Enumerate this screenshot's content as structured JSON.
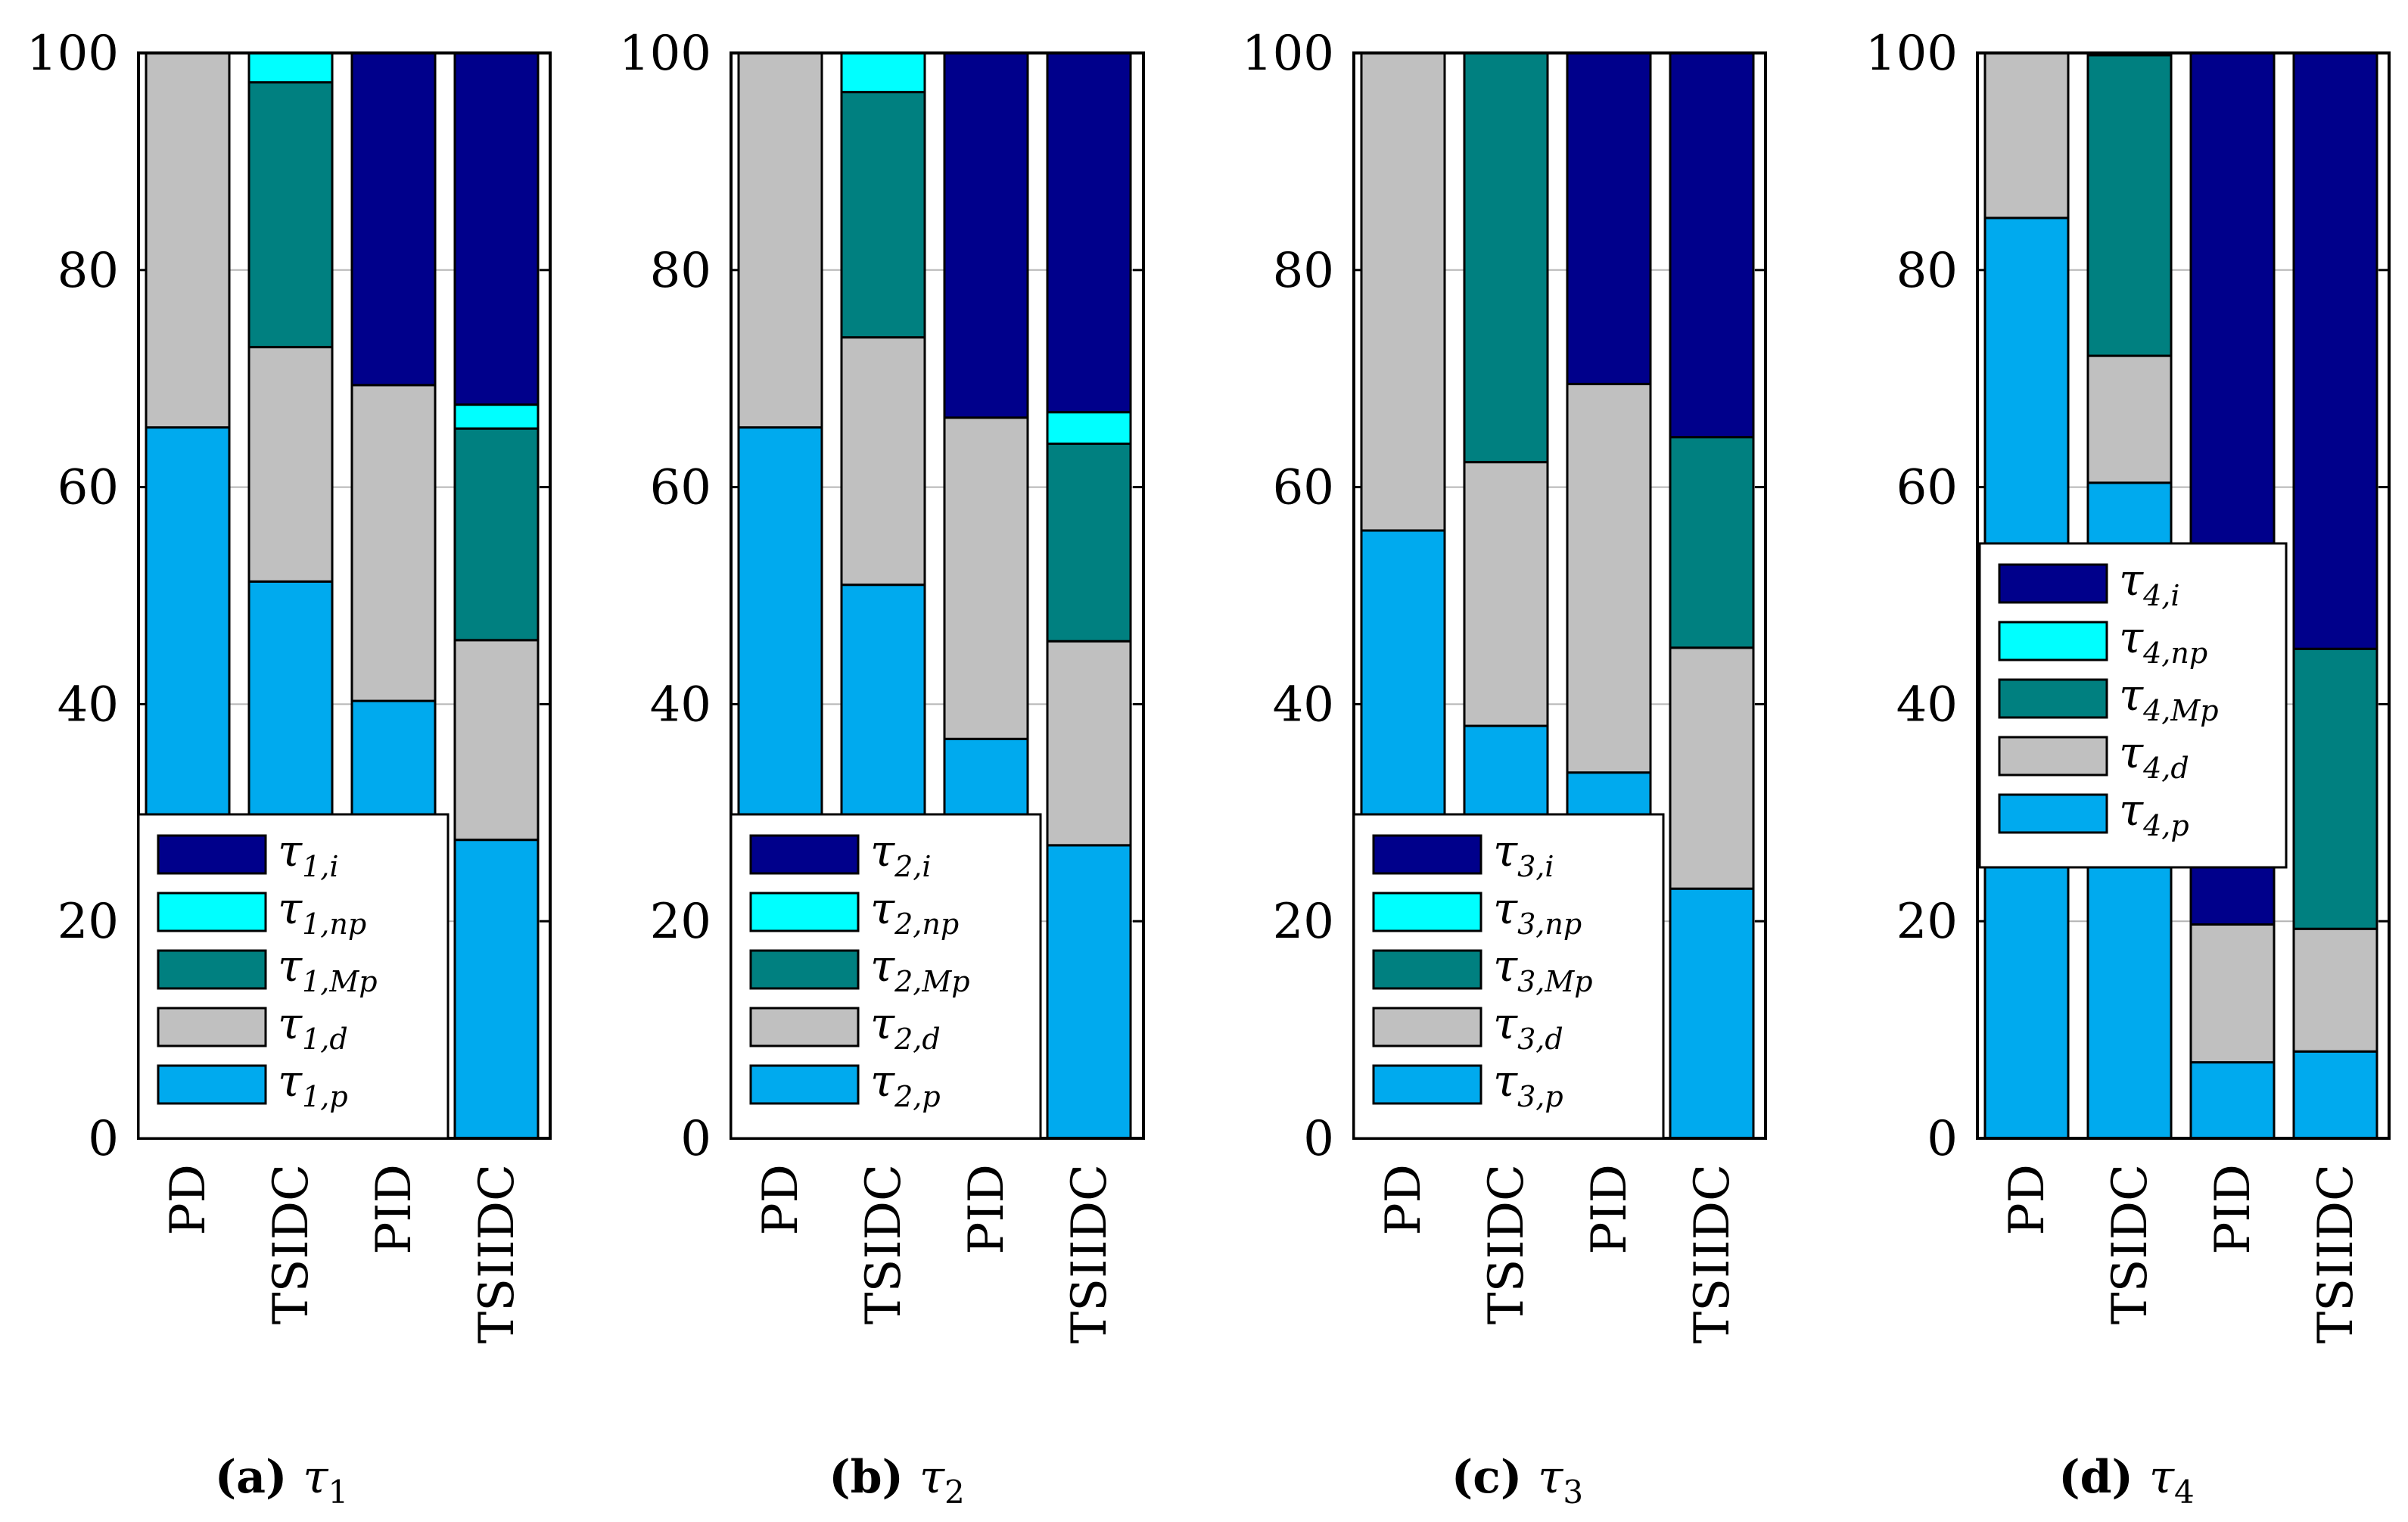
{
  "colors": {
    "p": "#00aaee",
    "d": "#c0c0c0",
    "Mp": "#008080",
    "np": "#00ffff",
    "i": "#00008b",
    "grid": "#b4b4b4",
    "frame": "#000000"
  },
  "chart_data": [
    {
      "type": "bar",
      "stacked": true,
      "caption": {
        "letter": "(a)",
        "symbol": "τ",
        "sub": "1"
      },
      "categories": [
        "PD",
        "TSIDC",
        "PID",
        "TSIIDC"
      ],
      "ylim": [
        0,
        100
      ],
      "yticks": [
        "0",
        "20",
        "40",
        "60",
        "80",
        "100"
      ],
      "grid": true,
      "legend_position": "bottom-left",
      "series": [
        {
          "key": "p",
          "label": "τ",
          "sub": "1,p",
          "values": [
            65.5,
            51.3,
            40.3,
            27.5
          ]
        },
        {
          "key": "d",
          "label": "τ",
          "sub": "1,d",
          "values": [
            34.5,
            21.6,
            29.1,
            18.4
          ]
        },
        {
          "key": "Mp",
          "label": "τ",
          "sub": "1,Mp",
          "values": [
            0,
            24.4,
            0,
            19.5
          ]
        },
        {
          "key": "np",
          "label": "τ",
          "sub": "1,np",
          "values": [
            0,
            2.7,
            0,
            2.2
          ]
        },
        {
          "key": "i",
          "label": "τ",
          "sub": "1,i",
          "values": [
            0,
            0,
            30.6,
            32.4
          ]
        }
      ]
    },
    {
      "type": "bar",
      "stacked": true,
      "caption": {
        "letter": "(b)",
        "symbol": "τ",
        "sub": "2"
      },
      "categories": [
        "PD",
        "TSIDC",
        "PID",
        "TSIIDC"
      ],
      "ylim": [
        0,
        100
      ],
      "yticks": [
        "0",
        "20",
        "40",
        "60",
        "80",
        "100"
      ],
      "grid": true,
      "legend_position": "bottom-left",
      "series": [
        {
          "key": "p",
          "label": "τ",
          "sub": "2,p",
          "values": [
            65.5,
            51.0,
            36.8,
            27.0
          ]
        },
        {
          "key": "d",
          "label": "τ",
          "sub": "2,d",
          "values": [
            34.5,
            22.8,
            29.6,
            18.8
          ]
        },
        {
          "key": "Mp",
          "label": "τ",
          "sub": "2,Mp",
          "values": [
            0,
            22.6,
            0,
            18.2
          ]
        },
        {
          "key": "np",
          "label": "τ",
          "sub": "2,np",
          "values": [
            0,
            3.6,
            0,
            2.9
          ]
        },
        {
          "key": "i",
          "label": "τ",
          "sub": "2,i",
          "values": [
            0,
            0,
            33.6,
            33.1
          ]
        }
      ]
    },
    {
      "type": "bar",
      "stacked": true,
      "caption": {
        "letter": "(c)",
        "symbol": "τ",
        "sub": "3"
      },
      "categories": [
        "PD",
        "TSIDC",
        "PID",
        "TSIIDC"
      ],
      "ylim": [
        0,
        100
      ],
      "yticks": [
        "0",
        "20",
        "40",
        "60",
        "80",
        "100"
      ],
      "grid": true,
      "legend_position": "bottom-left",
      "series": [
        {
          "key": "p",
          "label": "τ",
          "sub": "3,p",
          "values": [
            56.0,
            38.0,
            33.7,
            23.0
          ]
        },
        {
          "key": "d",
          "label": "τ",
          "sub": "3,d",
          "values": [
            44.0,
            24.3,
            35.8,
            22.2
          ]
        },
        {
          "key": "Mp",
          "label": "τ",
          "sub": "3,Mp",
          "values": [
            0,
            37.7,
            0,
            19.4
          ]
        },
        {
          "key": "np",
          "label": "τ",
          "sub": "3,np",
          "values": [
            0,
            0,
            0,
            0
          ]
        },
        {
          "key": "i",
          "label": "τ",
          "sub": "3,i",
          "values": [
            0,
            0,
            30.5,
            35.4
          ]
        }
      ]
    },
    {
      "type": "bar",
      "stacked": true,
      "caption": {
        "letter": "(d)",
        "symbol": "τ",
        "sub": "4"
      },
      "categories": [
        "PD",
        "TSIDC",
        "PID",
        "TSIIDC"
      ],
      "ylim": [
        0,
        100
      ],
      "yticks": [
        "0",
        "20",
        "40",
        "60",
        "80",
        "100"
      ],
      "grid": true,
      "legend_position": "center-left",
      "series": [
        {
          "key": "p",
          "label": "τ",
          "sub": "4,p",
          "values": [
            84.8,
            60.4,
            7.0,
            8.0
          ]
        },
        {
          "key": "d",
          "label": "τ",
          "sub": "4,d",
          "values": [
            15.2,
            11.7,
            12.7,
            11.3
          ]
        },
        {
          "key": "Mp",
          "label": "τ",
          "sub": "4,Mp",
          "values": [
            0,
            27.7,
            0,
            25.8
          ]
        },
        {
          "key": "np",
          "label": "τ",
          "sub": "4,np",
          "values": [
            0,
            0.2,
            0,
            0
          ]
        },
        {
          "key": "i",
          "label": "τ",
          "sub": "4,i",
          "values": [
            0,
            0,
            80.3,
            54.9
          ]
        }
      ]
    }
  ]
}
